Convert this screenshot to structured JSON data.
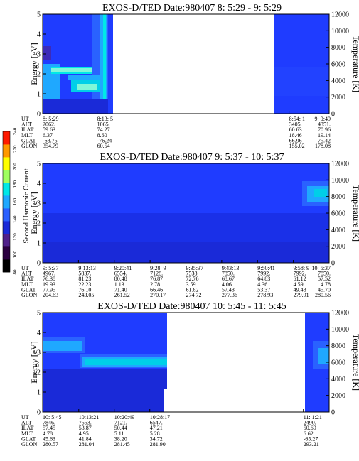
{
  "colorbar": {
    "label": "Second Harmonic Current",
    "ticks": [
      "80",
      "100",
      "120",
      "140",
      "160",
      "180",
      "200",
      "220",
      "240"
    ],
    "colors": [
      "#000000",
      "#2b0040",
      "#50208a",
      "#1a2ad8",
      "#2a60ff",
      "#1fa8ff",
      "#00e8e8",
      "#9fff60",
      "#ffff00",
      "#ff9900",
      "#ff1a00"
    ]
  },
  "chart_data": [
    {
      "type": "heatmap",
      "title": "EXOS-D/TED   Date:980407   8: 5:29 - 9: 5:29",
      "ylabel": "Energy [eV]",
      "ylabel_right": "Temperature [K]",
      "ylim": [
        0,
        5
      ],
      "ylim_right": [
        0,
        12000
      ],
      "yticks": [
        "0",
        "1",
        "2",
        "3",
        "4",
        "5"
      ],
      "yticks_right": [
        "0",
        "2000",
        "4000",
        "6000",
        "8000",
        "10000",
        "12000"
      ],
      "data_coverage": [
        [
          0,
          0.245
        ],
        [
          0.86,
          1.0
        ]
      ],
      "orbit_table": {
        "row_labels": [
          "UT",
          "ALT",
          "ILAT",
          "MLT",
          "GLAT",
          "GLON"
        ],
        "columns": [
          {
            "UT": "8: 5:29",
            "ALT": "2062.",
            "ILAT": "59.63",
            "MLT": "6.37",
            "GLAT": "-68.75",
            "GLON": "354.79"
          },
          {
            "UT": "8:13: 5",
            "ALT": "1065.",
            "ILAT": "74.27",
            "MLT": "8.60",
            "GLAT": "-76.24",
            "GLON": "60.54"
          },
          {
            "UT": "8:54: 1",
            "ALT": "3405.",
            "ILAT": "60.63",
            "MLT": "18.46",
            "GLAT": "66.96",
            "GLON": "155.02"
          },
          {
            "UT": "9: 0:49",
            "ALT": "4351.",
            "ILAT": "70.96",
            "MLT": "19.14",
            "GLAT": "75.42",
            "GLON": "178.08"
          }
        ]
      }
    },
    {
      "type": "heatmap",
      "title": "EXOS-D/TED   Date:980407   9: 5:37 - 10: 5:37",
      "ylabel": "Energy [eV]",
      "ylabel_right": "Temperature [K]",
      "ylim": [
        0,
        5
      ],
      "ylim_right": [
        0,
        12000
      ],
      "yticks": [
        "0",
        "1",
        "2",
        "3",
        "4",
        "5"
      ],
      "yticks_right": [
        "0",
        "2000",
        "4000",
        "6000",
        "8000",
        "10000",
        "12000"
      ],
      "data_coverage": [
        [
          0,
          1.0
        ]
      ],
      "orbit_table": {
        "row_labels": [
          "UT",
          "ALT",
          "ILAT",
          "MLT",
          "GLAT",
          "GLON"
        ],
        "columns": [
          {
            "UT": "9: 5:37",
            "ALT": "4967.",
            "ILAT": "76.38",
            "MLT": "19.93",
            "GLAT": "77.95",
            "GLON": "204.63"
          },
          {
            "UT": "9:13:13",
            "ALT": "5837.",
            "ILAT": "81.23",
            "MLT": "22.23",
            "GLAT": "76.10",
            "GLON": "243.05"
          },
          {
            "UT": "9:20:41",
            "ALT": "6554.",
            "ILAT": "80.48",
            "MLT": "1.13",
            "GLAT": "71.40",
            "GLON": "261.52"
          },
          {
            "UT": "9:28: 9",
            "ALT": "7128.",
            "ILAT": "76.87",
            "MLT": "2.78",
            "GLAT": "66.46",
            "GLON": "270.17"
          },
          {
            "UT": "9:35:37",
            "ALT": "7538.",
            "ILAT": "72.76",
            "MLT": "3.59",
            "GLAT": "61.82",
            "GLON": "274.72"
          },
          {
            "UT": "9:43:13",
            "ALT": "7850.",
            "ILAT": "68.67",
            "MLT": "4.06",
            "GLAT": "57.43",
            "GLON": "277.36"
          },
          {
            "UT": "9:50:41",
            "ALT": "7992.",
            "ILAT": "64.83",
            "MLT": "4.36",
            "GLAT": "53.37",
            "GLON": "278.93"
          },
          {
            "UT": "9:58: 9",
            "ALT": "7992.",
            "ILAT": "61.12",
            "MLT": "4.59",
            "GLAT": "49.48",
            "GLON": "279.91"
          },
          {
            "UT": "10: 5:37",
            "ALT": "7850.",
            "ILAT": "57.52",
            "MLT": "4.78",
            "GLAT": "45.70",
            "GLON": "280.56"
          }
        ]
      }
    },
    {
      "type": "heatmap",
      "title": "EXOS-D/TED   Date:980407   10: 5:45 - 11: 5:45",
      "ylabel": "Energy [eV]",
      "ylabel_right": "Temperature [K]",
      "ylim": [
        0,
        5
      ],
      "ylim_right": [
        0,
        12000
      ],
      "yticks": [
        "0",
        "1",
        "2",
        "3",
        "4",
        "5"
      ],
      "yticks_right": [
        "0",
        "2000",
        "4000",
        "6000",
        "8000",
        "10000",
        "12000"
      ],
      "data_coverage": [
        [
          0,
          0.505
        ],
        [
          0.93,
          1.0
        ]
      ],
      "orbit_table": {
        "row_labels": [
          "UT",
          "ALT",
          "ILAT",
          "MLT",
          "GLAT",
          "GLON"
        ],
        "columns": [
          {
            "UT": "10: 5:45",
            "ALT": "7846.",
            "ILAT": "57.45",
            "MLT": "4.78",
            "GLAT": "45.63",
            "GLON": "280.57"
          },
          {
            "UT": "10:13:21",
            "ALT": "7553.",
            "ILAT": "53.87",
            "MLT": "4.95",
            "GLAT": "41.84",
            "GLON": "281.04"
          },
          {
            "UT": "10:20:49",
            "ALT": "7121.",
            "ILAT": "50.44",
            "MLT": "5.11",
            "GLAT": "38.20",
            "GLON": "281.45"
          },
          {
            "UT": "10:28:17",
            "ALT": "6547.",
            "ILAT": "47.21",
            "MLT": "5.28",
            "GLAT": "34.72",
            "GLON": "281.90"
          },
          {
            "UT": "11: 1:21",
            "ALT": "2490.",
            "ILAT": "50.69",
            "MLT": "6.62",
            "GLAT": "-65.27",
            "GLON": "293.21"
          }
        ]
      }
    }
  ]
}
